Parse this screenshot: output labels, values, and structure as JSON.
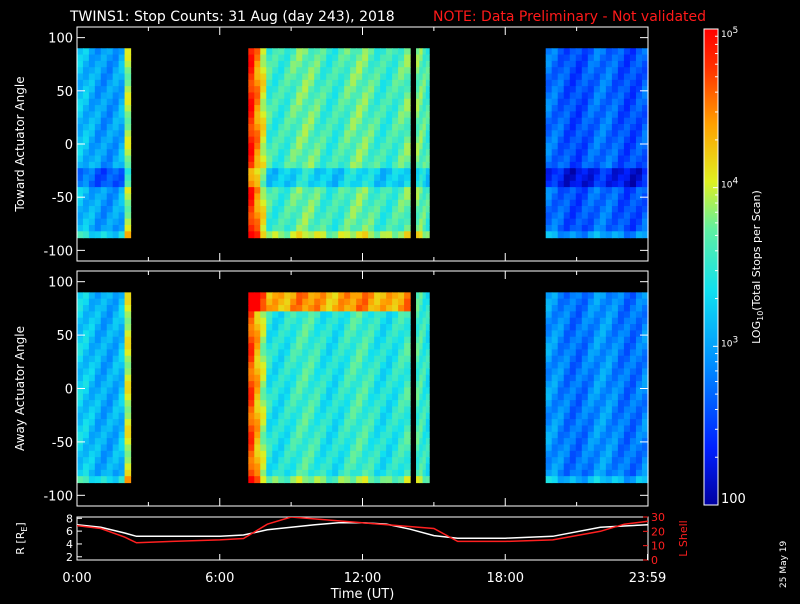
{
  "header": {
    "title": "TWINS1: Stop Counts: 31 Aug (day 243), 2018",
    "note": "NOTE: Data Preliminary - Not validated",
    "note_color": "#ff1a1a"
  },
  "stamp": "25 May 19",
  "chart_data": [
    {
      "type": "heatmap",
      "name": "toward",
      "ylabel": "Toward Actuator Angle",
      "yticks": [
        100,
        50,
        0,
        -50,
        -100
      ],
      "ylim": [
        -110,
        110
      ],
      "xlim": [
        0,
        24
      ],
      "data_angle_range": [
        -88,
        90
      ],
      "segments": [
        {
          "start": 0.0,
          "end": 2.25,
          "level": 0.35
        },
        {
          "start": 7.2,
          "end": 14.0,
          "level": 0.55
        },
        {
          "start": 14.25,
          "end": 14.8,
          "level": 0.55
        },
        {
          "start": 19.7,
          "end": 24.0,
          "level": 0.22
        }
      ]
    },
    {
      "type": "heatmap",
      "name": "away",
      "ylabel": "Away Actuator Angle",
      "yticks": [
        100,
        50,
        0,
        -50,
        -100
      ],
      "ylim": [
        -110,
        110
      ],
      "xlim": [
        0,
        24
      ],
      "data_angle_range": [
        -88,
        90
      ],
      "segments": [
        {
          "start": 0.0,
          "end": 2.25,
          "level": 0.38
        },
        {
          "start": 7.2,
          "end": 14.0,
          "level": 0.5
        },
        {
          "start": 14.25,
          "end": 14.8,
          "level": 0.5
        },
        {
          "start": 19.7,
          "end": 24.0,
          "level": 0.28
        }
      ]
    },
    {
      "type": "line",
      "name": "orbit",
      "ylabel_left": "R [R",
      "ylabel_left_sub": "E",
      "ylabel_left_close": "]",
      "ylabel_right": "L Shell",
      "yticks_left": [
        8,
        6,
        4,
        2
      ],
      "yticks_right": [
        30,
        20,
        10,
        0
      ],
      "ylim_left": [
        1.5,
        8.2
      ],
      "ylim_right": [
        0,
        30
      ],
      "xlabel": "Time (UT)",
      "xticks": [
        {
          "value": 0,
          "label": "0:00"
        },
        {
          "value": 6,
          "label": "6:00"
        },
        {
          "value": 12,
          "label": "12:00"
        },
        {
          "value": 18,
          "label": "18:00"
        },
        {
          "value": 23.98,
          "label": "23:59"
        }
      ],
      "series": [
        {
          "color": "#ffffff",
          "axis": "left",
          "x": [
            0,
            1,
            2,
            2.5,
            4,
            6,
            7,
            8,
            10,
            11,
            12,
            13,
            14,
            15,
            16,
            18,
            20,
            22,
            24
          ],
          "y": [
            7.0,
            6.6,
            5.7,
            5.2,
            5.2,
            5.2,
            5.4,
            6.2,
            7.0,
            7.3,
            7.3,
            7.1,
            6.3,
            5.3,
            4.9,
            4.9,
            5.2,
            6.6,
            7.0
          ]
        },
        {
          "color": "#ff2020",
          "axis": "right",
          "x": [
            0,
            1,
            2,
            2.5,
            4,
            6,
            7,
            8,
            9,
            15,
            16,
            18,
            20,
            22,
            23,
            24
          ],
          "y": [
            24,
            22,
            16,
            12,
            13,
            14,
            15,
            25,
            30,
            22,
            13,
            13,
            14,
            20,
            25,
            27
          ]
        }
      ]
    }
  ],
  "colorbar": {
    "label": "LOG",
    "label_sub": "10",
    "label_rest": "(Total Stops per Scan)",
    "ticks": [
      {
        "value": 100000,
        "label": "10",
        "sup": "5"
      },
      {
        "value": 10000,
        "label": "10",
        "sup": "4"
      },
      {
        "value": 1000,
        "label": "10",
        "sup": "3"
      },
      {
        "value": 100,
        "label": "100",
        "sup": ""
      }
    ],
    "range": [
      100,
      100000
    ]
  },
  "colors": {
    "axis": "#ffffff",
    "background": "#000000"
  }
}
